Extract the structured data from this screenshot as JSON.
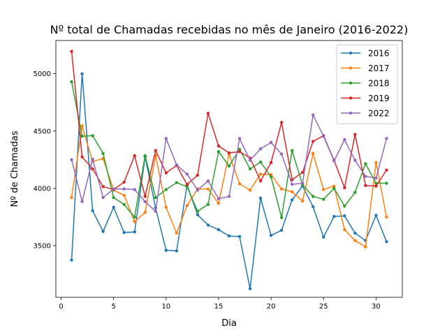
{
  "chart_data": {
    "type": "line",
    "title": "Nº total de Chamadas recebidas no mês de Janeiro (2016-2022)",
    "xlabel": "Dia",
    "ylabel": "Nº de Chamadas",
    "xlim": [
      -0.5,
      32.5
    ],
    "ylim": [
      3050,
      5290
    ],
    "xticks": [
      0,
      5,
      10,
      15,
      20,
      25,
      30
    ],
    "yticks": [
      3500,
      4000,
      4500,
      5000
    ],
    "grid": false,
    "legend": "top-right",
    "x": [
      1,
      2,
      3,
      4,
      5,
      6,
      7,
      8,
      9,
      10,
      11,
      12,
      13,
      14,
      15,
      16,
      17,
      18,
      19,
      20,
      21,
      22,
      23,
      24,
      25,
      26,
      27,
      28,
      29,
      30,
      31
    ],
    "series": [
      {
        "name": "2016",
        "color": "#1f77b4",
        "values": [
          3375,
          5000,
          3805,
          3625,
          3835,
          3615,
          3620,
          4275,
          3830,
          3460,
          3455,
          4030,
          3770,
          3680,
          3640,
          3585,
          3580,
          3125,
          3915,
          3590,
          3635,
          3900,
          4020,
          3840,
          3575,
          3755,
          3760,
          3610,
          3545,
          3765,
          3535
        ]
      },
      {
        "name": "2017",
        "color": "#ff7f0e",
        "values": [
          3920,
          4545,
          4235,
          4260,
          3985,
          3940,
          3710,
          3790,
          4285,
          3835,
          3610,
          3850,
          3995,
          3995,
          3870,
          4300,
          4040,
          3985,
          4125,
          4120,
          3995,
          3970,
          3890,
          4305,
          3990,
          4020,
          3640,
          3545,
          3490,
          4225,
          3750
        ]
      },
      {
        "name": "2018",
        "color": "#2ca02c",
        "values": [
          4930,
          4455,
          4460,
          4305,
          3920,
          3860,
          3750,
          4285,
          3920,
          3990,
          4050,
          4015,
          3800,
          3860,
          4320,
          4195,
          4340,
          4170,
          4230,
          4100,
          3745,
          4330,
          4030,
          3930,
          3905,
          4000,
          3845,
          3965,
          4215,
          4045,
          4045
        ]
      },
      {
        "name": "2019",
        "color": "#d62728",
        "values": [
          5195,
          4275,
          4170,
          4015,
          3990,
          4055,
          4285,
          3930,
          4330,
          4135,
          4200,
          4035,
          4115,
          4655,
          4370,
          4310,
          4320,
          4265,
          4065,
          4225,
          4575,
          4075,
          4140,
          4410,
          4460,
          4245,
          4005,
          4470,
          4025,
          4020,
          4160
        ]
      },
      {
        "name": "2022",
        "color": "#9467bd",
        "values": [
          4250,
          3885,
          4255,
          3920,
          3995,
          3995,
          3990,
          3885,
          3800,
          4435,
          4205,
          4125,
          3985,
          4065,
          3910,
          3930,
          4435,
          4245,
          4345,
          4400,
          4300,
          4035,
          4045,
          4640,
          4455,
          4240,
          4425,
          4245,
          4105,
          4090,
          4435
        ]
      }
    ]
  }
}
